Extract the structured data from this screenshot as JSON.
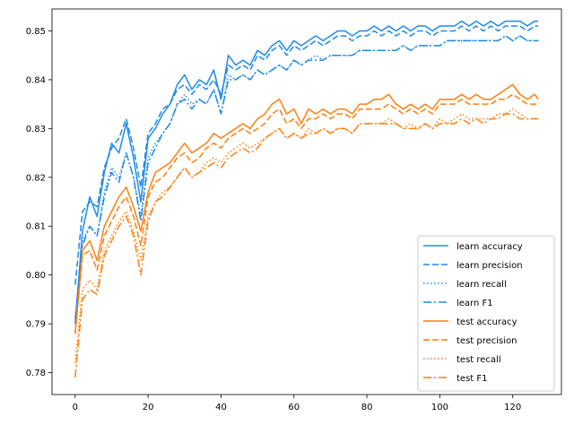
{
  "chart_data": {
    "type": "line",
    "title": "",
    "xlabel": "",
    "ylabel": "",
    "xlim": [
      -6.35,
      133.35
    ],
    "ylim": [
      0.7755,
      0.8545
    ],
    "xticks": [
      0,
      20,
      40,
      60,
      80,
      100,
      120
    ],
    "yticks": [
      0.78,
      0.79,
      0.8,
      0.81,
      0.82,
      0.83,
      0.84,
      0.85
    ],
    "xtick_labels": [
      "0",
      "20",
      "40",
      "60",
      "80",
      "100",
      "120"
    ],
    "ytick_labels": [
      "0.78",
      "0.79",
      "0.80",
      "0.81",
      "0.82",
      "0.83",
      "0.84",
      "0.85"
    ],
    "grid": false,
    "legend_position": "lower-right",
    "colors": {
      "learn": "#1f8ae8",
      "test": "#ff7f0e"
    },
    "x": [
      0,
      2,
      4,
      6,
      8,
      10,
      12,
      14,
      16,
      18,
      20,
      22,
      24,
      26,
      28,
      30,
      32,
      34,
      36,
      38,
      40,
      42,
      44,
      46,
      48,
      50,
      52,
      54,
      56,
      58,
      60,
      62,
      64,
      66,
      68,
      70,
      72,
      74,
      76,
      78,
      80,
      82,
      84,
      86,
      88,
      90,
      92,
      94,
      96,
      98,
      100,
      102,
      104,
      106,
      108,
      110,
      112,
      114,
      116,
      118,
      120,
      122,
      124,
      126,
      127
    ],
    "series": [
      {
        "name": "learn accuracy",
        "group": "learn",
        "dash": "solid",
        "values": [
          0.79,
          0.809,
          0.816,
          0.812,
          0.821,
          0.827,
          0.825,
          0.831,
          0.824,
          0.815,
          0.828,
          0.83,
          0.833,
          0.835,
          0.839,
          0.841,
          0.838,
          0.84,
          0.839,
          0.842,
          0.836,
          0.845,
          0.843,
          0.844,
          0.843,
          0.846,
          0.845,
          0.847,
          0.848,
          0.846,
          0.848,
          0.847,
          0.848,
          0.849,
          0.848,
          0.849,
          0.85,
          0.85,
          0.849,
          0.85,
          0.85,
          0.851,
          0.85,
          0.851,
          0.85,
          0.851,
          0.85,
          0.851,
          0.851,
          0.85,
          0.851,
          0.851,
          0.851,
          0.852,
          0.851,
          0.852,
          0.851,
          0.852,
          0.851,
          0.852,
          0.852,
          0.852,
          0.851,
          0.852,
          0.852
        ]
      },
      {
        "name": "learn precision",
        "group": "learn",
        "dash": "dashed",
        "values": [
          0.798,
          0.813,
          0.815,
          0.814,
          0.822,
          0.826,
          0.828,
          0.832,
          0.826,
          0.818,
          0.829,
          0.831,
          0.834,
          0.835,
          0.838,
          0.839,
          0.837,
          0.839,
          0.838,
          0.84,
          0.837,
          0.843,
          0.842,
          0.843,
          0.842,
          0.845,
          0.844,
          0.846,
          0.847,
          0.845,
          0.847,
          0.846,
          0.847,
          0.848,
          0.847,
          0.848,
          0.849,
          0.849,
          0.848,
          0.849,
          0.849,
          0.85,
          0.849,
          0.85,
          0.849,
          0.85,
          0.849,
          0.85,
          0.85,
          0.849,
          0.85,
          0.85,
          0.85,
          0.851,
          0.85,
          0.851,
          0.85,
          0.851,
          0.85,
          0.851,
          0.851,
          0.851,
          0.85,
          0.851,
          0.851
        ]
      },
      {
        "name": "learn recall",
        "group": "learn",
        "dash": "dotted",
        "values": [
          0.79,
          0.807,
          0.81,
          0.808,
          0.817,
          0.822,
          0.82,
          0.825,
          0.82,
          0.812,
          0.824,
          0.827,
          0.829,
          0.831,
          0.835,
          0.837,
          0.835,
          0.836,
          0.835,
          0.838,
          0.833,
          0.841,
          0.84,
          0.841,
          0.84,
          0.842,
          0.841,
          0.842,
          0.843,
          0.842,
          0.844,
          0.843,
          0.844,
          0.845,
          0.844,
          0.845,
          0.845,
          0.845,
          0.845,
          0.846,
          0.846,
          0.846,
          0.846,
          0.846,
          0.846,
          0.847,
          0.846,
          0.847,
          0.847,
          0.847,
          0.847,
          0.848,
          0.848,
          0.848,
          0.848,
          0.848,
          0.848,
          0.848,
          0.848,
          0.849,
          0.848,
          0.849,
          0.848,
          0.848,
          0.848
        ]
      },
      {
        "name": "learn F1",
        "group": "learn",
        "dash": "dashdot",
        "values": [
          0.791,
          0.806,
          0.81,
          0.808,
          0.816,
          0.821,
          0.819,
          0.825,
          0.82,
          0.811,
          0.823,
          0.826,
          0.829,
          0.831,
          0.835,
          0.836,
          0.834,
          0.836,
          0.835,
          0.838,
          0.833,
          0.84,
          0.84,
          0.841,
          0.84,
          0.842,
          0.841,
          0.842,
          0.843,
          0.842,
          0.844,
          0.843,
          0.844,
          0.844,
          0.844,
          0.845,
          0.845,
          0.845,
          0.845,
          0.846,
          0.846,
          0.846,
          0.846,
          0.846,
          0.846,
          0.847,
          0.846,
          0.847,
          0.847,
          0.847,
          0.847,
          0.848,
          0.848,
          0.848,
          0.848,
          0.848,
          0.848,
          0.848,
          0.848,
          0.849,
          0.848,
          0.849,
          0.848,
          0.848,
          0.848
        ]
      },
      {
        "name": "test accuracy",
        "group": "test",
        "dash": "solid",
        "values": [
          0.788,
          0.805,
          0.807,
          0.803,
          0.81,
          0.813,
          0.816,
          0.818,
          0.814,
          0.809,
          0.817,
          0.821,
          0.822,
          0.823,
          0.825,
          0.827,
          0.825,
          0.826,
          0.827,
          0.829,
          0.828,
          0.829,
          0.83,
          0.831,
          0.83,
          0.832,
          0.833,
          0.835,
          0.836,
          0.833,
          0.834,
          0.831,
          0.834,
          0.833,
          0.834,
          0.833,
          0.834,
          0.834,
          0.833,
          0.835,
          0.835,
          0.836,
          0.836,
          0.837,
          0.835,
          0.834,
          0.835,
          0.834,
          0.835,
          0.834,
          0.836,
          0.836,
          0.836,
          0.837,
          0.836,
          0.837,
          0.836,
          0.836,
          0.837,
          0.838,
          0.839,
          0.837,
          0.836,
          0.837,
          0.836
        ]
      },
      {
        "name": "test precision",
        "group": "test",
        "dash": "dashed",
        "values": [
          0.788,
          0.804,
          0.805,
          0.801,
          0.808,
          0.811,
          0.814,
          0.816,
          0.812,
          0.806,
          0.816,
          0.819,
          0.82,
          0.822,
          0.824,
          0.825,
          0.823,
          0.824,
          0.826,
          0.827,
          0.826,
          0.828,
          0.829,
          0.83,
          0.829,
          0.83,
          0.831,
          0.833,
          0.834,
          0.831,
          0.832,
          0.83,
          0.832,
          0.832,
          0.833,
          0.832,
          0.833,
          0.833,
          0.832,
          0.834,
          0.834,
          0.834,
          0.834,
          0.835,
          0.834,
          0.833,
          0.834,
          0.833,
          0.834,
          0.833,
          0.835,
          0.835,
          0.835,
          0.836,
          0.835,
          0.835,
          0.835,
          0.835,
          0.836,
          0.836,
          0.837,
          0.836,
          0.835,
          0.835,
          0.835
        ]
      },
      {
        "name": "test recall",
        "group": "test",
        "dash": "dotted",
        "values": [
          0.782,
          0.797,
          0.799,
          0.797,
          0.805,
          0.808,
          0.811,
          0.813,
          0.809,
          0.803,
          0.812,
          0.815,
          0.817,
          0.818,
          0.82,
          0.822,
          0.82,
          0.821,
          0.823,
          0.824,
          0.823,
          0.825,
          0.826,
          0.827,
          0.826,
          0.827,
          0.828,
          0.829,
          0.83,
          0.828,
          0.829,
          0.828,
          0.83,
          0.829,
          0.83,
          0.829,
          0.83,
          0.83,
          0.829,
          0.831,
          0.831,
          0.831,
          0.831,
          0.832,
          0.831,
          0.83,
          0.831,
          0.83,
          0.831,
          0.83,
          0.832,
          0.831,
          0.832,
          0.833,
          0.832,
          0.832,
          0.832,
          0.832,
          0.833,
          0.833,
          0.834,
          0.833,
          0.832,
          0.832,
          0.832
        ]
      },
      {
        "name": "test F1",
        "group": "test",
        "dash": "dashdot",
        "values": [
          0.779,
          0.795,
          0.797,
          0.796,
          0.804,
          0.807,
          0.81,
          0.812,
          0.808,
          0.8,
          0.811,
          0.815,
          0.816,
          0.818,
          0.82,
          0.822,
          0.82,
          0.821,
          0.822,
          0.823,
          0.822,
          0.824,
          0.825,
          0.826,
          0.825,
          0.826,
          0.828,
          0.829,
          0.83,
          0.828,
          0.829,
          0.828,
          0.829,
          0.829,
          0.83,
          0.829,
          0.83,
          0.83,
          0.829,
          0.831,
          0.831,
          0.831,
          0.831,
          0.831,
          0.831,
          0.83,
          0.83,
          0.83,
          0.831,
          0.83,
          0.831,
          0.831,
          0.831,
          0.832,
          0.831,
          0.832,
          0.831,
          0.832,
          0.832,
          0.833,
          0.833,
          0.832,
          0.832,
          0.832,
          0.832
        ]
      }
    ]
  }
}
